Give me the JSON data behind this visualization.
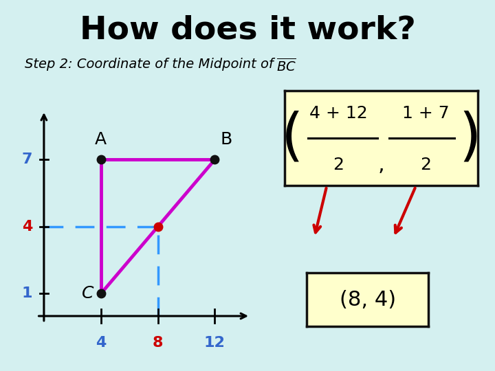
{
  "background_color": "#d4f0f0",
  "title": "How does it work?",
  "title_fontsize": 34,
  "title_color": "#000000",
  "subtitle_fontsize": 14,
  "graph": {
    "A": [
      4,
      7
    ],
    "B": [
      12,
      7
    ],
    "C": [
      4,
      1
    ],
    "midpoint": [
      8,
      4
    ],
    "triangle_color": "#cc00cc",
    "midpoint_color": "#cc0000",
    "point_color": "#111111",
    "dashed_color": "#3399ff",
    "y_label_7_color": "#3366cc",
    "y_label_4_color": "#cc0000",
    "y_label_1_color": "#3366cc",
    "x_label_4_color": "#3366cc",
    "x_label_8_color": "#cc0000",
    "x_label_12_color": "#3366cc"
  },
  "formula_box": {
    "frac1_num": "4 + 12",
    "frac1_den": "2",
    "frac2_num": "1 + 7",
    "frac2_den": "2",
    "bg": "#ffffcc",
    "edge": "#111111"
  },
  "result_box": {
    "text": "(8, 4)",
    "bg": "#ffffcc",
    "edge": "#111111"
  }
}
